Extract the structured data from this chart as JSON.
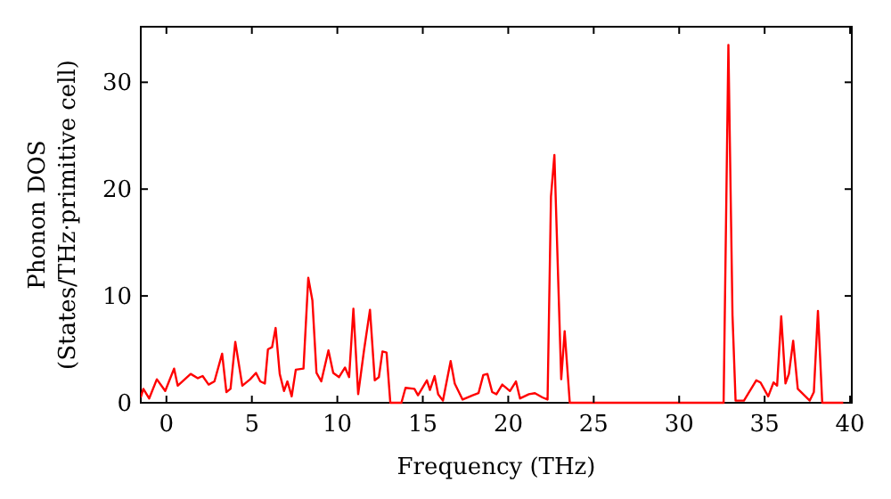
{
  "chart_data": {
    "type": "line",
    "xlabel": "Frequency (THz)",
    "ylabel": "Phonon DOS\n(States/THz·primitive cell)",
    "xlim": [
      -1.5,
      40.1
    ],
    "ylim": [
      0,
      35.2
    ],
    "xticks": [
      0,
      5,
      10,
      15,
      20,
      25,
      30,
      35,
      40
    ],
    "yticks": [
      0,
      10,
      20,
      30
    ],
    "grid": false,
    "marker": "none",
    "line_style": "solid",
    "series": [
      {
        "color": "#ff0000",
        "x": [
          -1.5,
          -1.35,
          -1.01,
          -0.56,
          -0.07,
          0.45,
          0.66,
          1.42,
          1.84,
          2.12,
          2.47,
          2.81,
          3.26,
          3.51,
          3.75,
          4.03,
          4.44,
          4.9,
          5.24,
          5.49,
          5.76,
          5.94,
          6.18,
          6.39,
          6.63,
          6.88,
          7.08,
          7.33,
          7.57,
          8.02,
          8.3,
          8.54,
          8.78,
          9.06,
          9.48,
          9.76,
          10.1,
          10.45,
          10.69,
          10.94,
          11.22,
          11.56,
          11.91,
          12.19,
          12.43,
          12.64,
          12.88,
          13.1,
          13.75,
          13.99,
          14.51,
          14.72,
          15.24,
          15.42,
          15.69,
          15.9,
          16.18,
          16.63,
          16.87,
          17.33,
          17.92,
          18.26,
          18.54,
          18.78,
          19.06,
          19.31,
          19.65,
          20.1,
          20.45,
          20.69,
          21.21,
          21.56,
          22.0,
          22.3,
          22.5,
          22.7,
          23.1,
          23.3,
          23.6,
          32.6,
          32.88,
          33.12,
          33.3,
          33.79,
          34.13,
          34.51,
          34.76,
          35.21,
          35.52,
          35.73,
          35.97,
          36.22,
          36.42,
          36.67,
          36.94,
          37.64,
          37.88,
          38.12,
          38.37,
          39.6
        ],
        "values": [
          0.5,
          1.3,
          0.4,
          2.2,
          1.1,
          3.2,
          1.6,
          2.7,
          2.3,
          2.5,
          1.7,
          2.0,
          4.6,
          1.0,
          1.3,
          5.7,
          1.6,
          2.2,
          2.8,
          2.0,
          1.8,
          5.0,
          5.2,
          7.0,
          2.7,
          1.1,
          2.0,
          0.6,
          3.1,
          3.2,
          11.7,
          9.6,
          2.8,
          2.0,
          4.9,
          2.8,
          2.4,
          3.3,
          2.4,
          8.8,
          0.8,
          4.9,
          8.7,
          2.1,
          2.4,
          4.8,
          4.7,
          0,
          0,
          1.4,
          1.3,
          0.7,
          2.1,
          1.2,
          2.5,
          0.8,
          0.2,
          3.9,
          1.8,
          0.3,
          0.7,
          0.9,
          2.6,
          2.7,
          1.0,
          0.8,
          1.7,
          1.1,
          2.0,
          0.4,
          0.8,
          0.9,
          0.5,
          0.3,
          19.3,
          23.2,
          2.2,
          6.7,
          0,
          0,
          33.5,
          8.2,
          0.2,
          0.2,
          1.1,
          2.1,
          1.9,
          0.6,
          1.9,
          1.6,
          8.1,
          1.8,
          2.7,
          5.8,
          1.3,
          0.2,
          1.0,
          8.6,
          0,
          0
        ]
      }
    ]
  }
}
